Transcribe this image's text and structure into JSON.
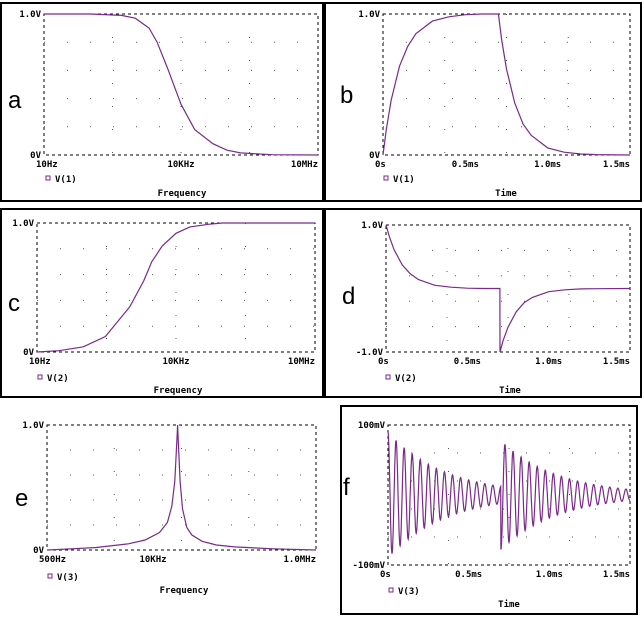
{
  "trace_color": "#7a2a8a",
  "grid_color": "#555555",
  "chart_data": [
    {
      "id": "a",
      "letter": "a",
      "type": "line",
      "xscale": "log",
      "xlabel": "Frequency",
      "legend": "V(1)",
      "xlim": [
        10,
        10000000
      ],
      "ylim": [
        0,
        1
      ],
      "xticks": [
        {
          "v": 10,
          "label": "10Hz"
        },
        {
          "v": 10000,
          "label": "10KHz"
        },
        {
          "v": 10000000,
          "label": "10MHz"
        }
      ],
      "yticks": [
        {
          "v": 1,
          "label": "1.0V"
        },
        {
          "v": 0,
          "label": "0V"
        }
      ],
      "series": [
        {
          "name": "V(1)",
          "x": [
            10,
            100,
            500,
            1000,
            2000,
            3000,
            5000,
            10000,
            20000,
            50000,
            100000,
            200000,
            1000000,
            10000000
          ],
          "y": [
            1.0,
            1.0,
            0.99,
            0.97,
            0.9,
            0.8,
            0.62,
            0.36,
            0.18,
            0.08,
            0.035,
            0.015,
            0.002,
            0.0
          ]
        }
      ]
    },
    {
      "id": "b",
      "letter": "b",
      "type": "line",
      "xscale": "linear",
      "xlabel": "Time",
      "legend": "V(1)",
      "xlim": [
        0,
        1.5
      ],
      "ylim": [
        0,
        1
      ],
      "xticks": [
        {
          "v": 0,
          "label": "0s"
        },
        {
          "v": 0.5,
          "label": "0.5ms"
        },
        {
          "v": 1.0,
          "label": "1.0ms"
        },
        {
          "v": 1.5,
          "label": "1.5ms"
        }
      ],
      "yticks": [
        {
          "v": 1,
          "label": "1.0V"
        },
        {
          "v": 0,
          "label": "0V"
        }
      ],
      "series": [
        {
          "name": "V(1)",
          "x": [
            0,
            0.02,
            0.05,
            0.1,
            0.15,
            0.2,
            0.3,
            0.4,
            0.5,
            0.6,
            0.7,
            0.701,
            0.72,
            0.75,
            0.8,
            0.85,
            0.9,
            1.0,
            1.1,
            1.2,
            1.3,
            1.5
          ],
          "y": [
            0,
            0.18,
            0.39,
            0.63,
            0.77,
            0.86,
            0.95,
            0.98,
            0.995,
            1.0,
            1.0,
            1.0,
            0.82,
            0.61,
            0.37,
            0.22,
            0.14,
            0.05,
            0.02,
            0.007,
            0.003,
            0.0
          ]
        }
      ]
    },
    {
      "id": "c",
      "letter": "c",
      "type": "line",
      "xscale": "log",
      "xlabel": "Frequency",
      "legend": "V(2)",
      "xlim": [
        10,
        10000000
      ],
      "ylim": [
        0,
        1
      ],
      "xticks": [
        {
          "v": 10,
          "label": "10Hz"
        },
        {
          "v": 10000,
          "label": "10KHz"
        },
        {
          "v": 10000000,
          "label": "10MHz"
        }
      ],
      "yticks": [
        {
          "v": 1,
          "label": "1.0V"
        },
        {
          "v": 0,
          "label": "0V"
        }
      ],
      "series": [
        {
          "name": "V(2)",
          "x": [
            10,
            30,
            100,
            300,
            1000,
            2000,
            3000,
            5000,
            10000,
            20000,
            50000,
            100000,
            1000000,
            10000000
          ],
          "y": [
            0.0,
            0.01,
            0.04,
            0.12,
            0.35,
            0.55,
            0.7,
            0.82,
            0.92,
            0.97,
            0.99,
            1.0,
            1.0,
            1.0
          ]
        }
      ]
    },
    {
      "id": "d",
      "letter": "d",
      "type": "line",
      "xscale": "linear",
      "xlabel": "Time",
      "legend": "V(2)",
      "xlim": [
        0,
        1.5
      ],
      "ylim": [
        -1,
        1
      ],
      "xticks": [
        {
          "v": 0,
          "label": "0s"
        },
        {
          "v": 0.5,
          "label": "0.5ms"
        },
        {
          "v": 1.0,
          "label": "1.0ms"
        },
        {
          "v": 1.5,
          "label": "1.5ms"
        }
      ],
      "yticks": [
        {
          "v": 1,
          "label": "1.0V"
        },
        {
          "v": -1,
          "label": "-1.0V"
        }
      ],
      "series": [
        {
          "name": "V(2)",
          "x": [
            0,
            0.02,
            0.05,
            0.1,
            0.15,
            0.2,
            0.3,
            0.4,
            0.5,
            0.6,
            0.7,
            0.701,
            0.72,
            0.75,
            0.8,
            0.85,
            0.9,
            1.0,
            1.1,
            1.2,
            1.3,
            1.5
          ],
          "y": [
            1.0,
            0.82,
            0.61,
            0.37,
            0.23,
            0.14,
            0.05,
            0.02,
            0.005,
            0.0,
            0.0,
            -1.0,
            -0.82,
            -0.61,
            -0.37,
            -0.22,
            -0.14,
            -0.05,
            -0.02,
            -0.007,
            -0.003,
            0.0
          ]
        }
      ]
    },
    {
      "id": "e",
      "letter": "e",
      "type": "line",
      "xscale": "log",
      "xlabel": "Frequency",
      "legend": "V(3)",
      "xlim": [
        500,
        1000000
      ],
      "ylim": [
        0,
        1
      ],
      "xticks": [
        {
          "v": 500,
          "label": "500Hz"
        },
        {
          "v": 10000,
          "label": "10KHz"
        },
        {
          "v": 1000000,
          "label": "1.0MHz"
        }
      ],
      "yticks": [
        {
          "v": 1,
          "label": "1.0V"
        },
        {
          "v": 0,
          "label": "0V"
        }
      ],
      "series": [
        {
          "name": "V(3)",
          "x": [
            500,
            1000,
            2000,
            5000,
            8000,
            12000,
            15000,
            17000,
            18500,
            19500,
            20000,
            20500,
            21500,
            23000,
            26000,
            30000,
            40000,
            60000,
            100000,
            300000,
            1000000
          ],
          "y": [
            0.0,
            0.01,
            0.02,
            0.05,
            0.08,
            0.14,
            0.22,
            0.35,
            0.55,
            0.85,
            1.0,
            0.85,
            0.55,
            0.33,
            0.18,
            0.12,
            0.07,
            0.04,
            0.025,
            0.01,
            0.0
          ]
        }
      ]
    },
    {
      "id": "f",
      "letter": "f",
      "type": "line",
      "xscale": "linear",
      "xlabel": "Time",
      "legend": "V(3)",
      "xlim": [
        0,
        1.5
      ],
      "ylim": [
        -100,
        100
      ],
      "xticks": [
        {
          "v": 0,
          "label": "0s"
        },
        {
          "v": 0.5,
          "label": "0.5ms"
        },
        {
          "v": 1.0,
          "label": "1.0ms"
        },
        {
          "v": 1.5,
          "label": "1.5ms"
        }
      ],
      "yticks": [
        {
          "v": 100,
          "label": "100mV"
        },
        {
          "v": -100,
          "label": "-100mV"
        }
      ],
      "series": [
        {
          "name": "V(3)",
          "model": "damped_oscillation",
          "amplitude_mV": 90,
          "frequency_kHz": 20,
          "decay_time_ms": 0.35,
          "step_at_ms": 0.7
        }
      ]
    }
  ]
}
